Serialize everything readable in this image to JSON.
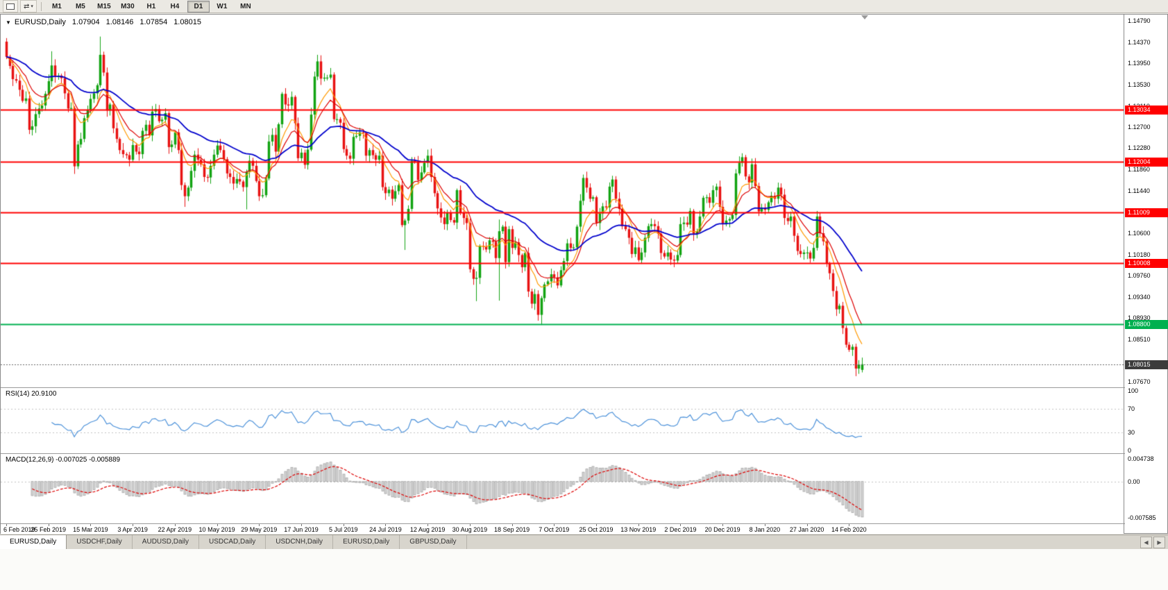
{
  "toolbar": {
    "timeframes": [
      "M1",
      "M5",
      "M15",
      "M30",
      "H1",
      "H4",
      "D1",
      "W1",
      "MN"
    ],
    "active_timeframe": "D1"
  },
  "icons": {
    "collapse": "▼",
    "swap_arrows": "⇄",
    "caret": "▾",
    "tab_scroll_left": "◀",
    "tab_scroll_right": "▶"
  },
  "chart_header": {
    "symbol": "EURUSD,Daily",
    "open": "1.07904",
    "high": "1.08146",
    "low": "1.07854",
    "close": "1.08015"
  },
  "rsi_header": "RSI(14) 20.9100",
  "macd_header": "MACD(12,26,9) -0.007025 -0.005889",
  "tabs": [
    {
      "label": "EURUSD,Daily",
      "active": true
    },
    {
      "label": "USDCHF,Daily",
      "active": false
    },
    {
      "label": "AUDUSD,Daily",
      "active": false
    },
    {
      "label": "USDCAD,Daily",
      "active": false
    },
    {
      "label": "USDCNH,Daily",
      "active": false
    },
    {
      "label": "EURUSD,Daily",
      "active": false
    },
    {
      "label": "GBPUSD,Daily",
      "active": false
    }
  ],
  "chart_data": {
    "type": "candlestick",
    "title": "EURUSD,Daily",
    "symbol": "EURUSD",
    "timeframe": "Daily",
    "current_ohlc": {
      "open": "1.07904",
      "high": "1.08146",
      "low": "1.07854",
      "close": "1.08015"
    },
    "ylim": [
      1.0756,
      1.149
    ],
    "y_tick_labels": [
      "1.14790",
      "1.14370",
      "1.13950",
      "1.13530",
      "1.13110",
      "1.12700",
      "1.12280",
      "1.11860",
      "1.11440",
      "1.10600",
      "1.10180",
      "1.09760",
      "1.09340",
      "1.08930",
      "1.08510",
      "1.07670"
    ],
    "x_tick_labels": [
      "6 Feb 2019",
      "25 Feb 2019",
      "15 Mar 2019",
      "3 Apr 2019",
      "22 Apr 2019",
      "10 May 2019",
      "29 May 2019",
      "17 Jun 2019",
      "5 Jul 2019",
      "24 Jul 2019",
      "12 Aug 2019",
      "30 Aug 2019",
      "18 Sep 2019",
      "7 Oct 2019",
      "25 Oct 2019",
      "13 Nov 2019",
      "2 Dec 2019",
      "20 Dec 2019",
      "8 Jan 2020",
      "27 Jan 2020",
      "14 Feb 2020"
    ],
    "candles_per_tick": 13,
    "first_open": 1.1438,
    "closes": [
      1.1408,
      1.139,
      1.1364,
      1.1361,
      1.1343,
      1.1321,
      1.1326,
      1.1264,
      1.1271,
      1.1295,
      1.1306,
      1.1312,
      1.1335,
      1.136,
      1.1391,
      1.137,
      1.1371,
      1.1366,
      1.1336,
      1.1306,
      1.1307,
      1.1192,
      1.1235,
      1.1246,
      1.1287,
      1.1303,
      1.1325,
      1.1336,
      1.1352,
      1.1412,
      1.1377,
      1.1302,
      1.1314,
      1.1267,
      1.1246,
      1.1224,
      1.1216,
      1.1214,
      1.1205,
      1.1234,
      1.1221,
      1.1216,
      1.1262,
      1.1274,
      1.1253,
      1.13,
      1.1305,
      1.1281,
      1.1284,
      1.1297,
      1.123,
      1.1235,
      1.1259,
      1.1224,
      1.1155,
      1.1133,
      1.115,
      1.1183,
      1.1215,
      1.1205,
      1.1196,
      1.1171,
      1.117,
      1.1193,
      1.1215,
      1.1233,
      1.1224,
      1.1206,
      1.1178,
      1.1171,
      1.1158,
      1.1167,
      1.1162,
      1.1151,
      1.1181,
      1.1203,
      1.1193,
      1.1163,
      1.1133,
      1.1135,
      1.1168,
      1.1241,
      1.1254,
      1.1221,
      1.1275,
      1.1335,
      1.1314,
      1.1312,
      1.1329,
      1.1277,
      1.1208,
      1.1219,
      1.1195,
      1.1225,
      1.1294,
      1.1369,
      1.1399,
      1.1365,
      1.1367,
      1.1367,
      1.1373,
      1.1285,
      1.1285,
      1.1278,
      1.1226,
      1.1213,
      1.1207,
      1.125,
      1.1252,
      1.1259,
      1.1257,
      1.1213,
      1.1224,
      1.1214,
      1.1205,
      1.1213,
      1.1151,
      1.1139,
      1.1146,
      1.1128,
      1.1143,
      1.1155,
      1.1076,
      1.1085,
      1.1108,
      1.1203,
      1.12,
      1.1165,
      1.118,
      1.1199,
      1.1213,
      1.1171,
      1.1139,
      1.1109,
      1.1091,
      1.1078,
      1.11,
      1.1086,
      1.1081,
      1.1145,
      1.1101,
      1.109,
      1.108,
      1.0989,
      1.097,
      1.0972,
      1.1035,
      1.1034,
      1.1028,
      1.1046,
      1.1043,
      1.1011,
      1.1064,
      1.1073,
      1.1003,
      1.1068,
      1.1031,
      1.1042,
      1.1017,
      1.0993,
      1.1021,
      1.0945,
      1.0921,
      1.094,
      1.0899,
      1.0932,
      1.0959,
      1.0965,
      1.0979,
      1.0973,
      1.0957,
      1.0987,
      1.1005,
      1.104,
      1.1031,
      1.1032,
      1.1073,
      1.1124,
      1.1169,
      1.115,
      1.1128,
      1.1131,
      1.108,
      1.1099,
      1.1113,
      1.1111,
      1.1152,
      1.1166,
      1.1128,
      1.1108,
      1.1074,
      1.1068,
      1.1051,
      1.1019,
      1.1032,
      1.1007,
      1.1022,
      1.1051,
      1.1074,
      1.1078,
      1.1074,
      1.1059,
      1.1021,
      1.1014,
      1.1022,
      1.1008,
      1.1006,
      1.1017,
      1.1078,
      1.1081,
      1.1077,
      1.1104,
      1.1059,
      1.1064,
      1.1093,
      1.113,
      1.1131,
      1.112,
      1.1145,
      1.1152,
      1.1112,
      1.1078,
      1.1085,
      1.1088,
      1.1096,
      1.1178,
      1.1199,
      1.121,
      1.1172,
      1.116,
      1.1196,
      1.1153,
      1.1103,
      1.111,
      1.1106,
      1.1121,
      1.1134,
      1.1128,
      1.115,
      1.1136,
      1.109,
      1.1084,
      1.1093,
      1.1055,
      1.1025,
      1.1019,
      1.1022,
      1.1022,
      1.101,
      1.1031,
      1.1093,
      1.106,
      1.1044,
      1.1,
      1.0981,
      1.0946,
      1.091,
      1.0917,
      1.0873,
      1.084,
      1.083,
      1.0836,
      1.0793,
      1.0801,
      1.08015
    ],
    "wick_overrides": {
      "0": {
        "h": 1.1445
      },
      "14": {
        "h": 1.1419
      },
      "21": {
        "l": 1.1177
      },
      "29": {
        "h": 1.1448
      },
      "55": {
        "l": 1.1112
      },
      "74": {
        "l": 1.1107
      },
      "96": {
        "h": 1.1412
      },
      "123": {
        "l": 1.1027
      },
      "145": {
        "l": 1.0926
      },
      "152": {
        "l": 1.0927,
        "h": 1.1087
      },
      "165": {
        "l": 1.0879
      },
      "262": {
        "l": 1.0778
      }
    },
    "last_candle": {
      "o": 1.07904,
      "h": 1.08146,
      "l": 1.07854,
      "c": 1.08015
    },
    "horizontal_lines": [
      {
        "label": "1.13034",
        "price": 1.13034,
        "color": "#ff0000"
      },
      {
        "label": "1.12004",
        "price": 1.12004,
        "color": "#ff0000"
      },
      {
        "label": "1.11009",
        "price": 1.11009,
        "color": "#ff0000"
      },
      {
        "label": "1.10008",
        "price": 1.10008,
        "color": "#ff0000"
      },
      {
        "label": "1.08800",
        "price": 1.088,
        "color": "#00b050"
      }
    ],
    "current_price_line": {
      "label": "1.08015",
      "price": 1.08015,
      "color": "#3c3c3c"
    },
    "moving_averages": [
      {
        "type": "ema",
        "period": 8,
        "color": "#ff9900"
      },
      {
        "type": "ema",
        "period": 13,
        "color": "#dd0000"
      },
      {
        "type": "ema",
        "period": 40,
        "color": "#0000cc"
      }
    ],
    "candle_colors": {
      "up": "#12a312",
      "down": "#e81212"
    },
    "rsi": {
      "period": 14,
      "current": 20.91,
      "line_color": "#4a90d9",
      "axis_labels": [
        "100",
        "70",
        "30",
        "0"
      ],
      "axis_values": [
        100,
        70,
        30,
        0
      ],
      "guide_levels": [
        70,
        30
      ]
    },
    "macd": {
      "fast": 12,
      "slow": 26,
      "signal": 9,
      "current_macd": -0.007025,
      "current_signal": -0.005889,
      "axis_labels": [
        "0.004738",
        "0.00",
        "-0.007585"
      ],
      "axis_values": [
        0.004738,
        0,
        -0.007585
      ],
      "histogram_color": "#d6d6d6",
      "histogram_border": "#a0a0a0",
      "signal_color": "#dd0000"
    }
  }
}
